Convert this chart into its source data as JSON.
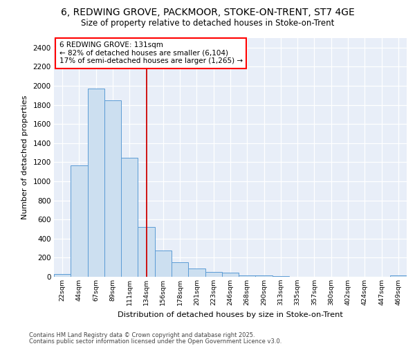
{
  "title_line1": "6, REDWING GROVE, PACKMOOR, STOKE-ON-TRENT, ST7 4GE",
  "title_line2": "Size of property relative to detached houses in Stoke-on-Trent",
  "xlabel": "Distribution of detached houses by size in Stoke-on-Trent",
  "ylabel": "Number of detached properties",
  "bin_labels": [
    "22sqm",
    "44sqm",
    "67sqm",
    "89sqm",
    "111sqm",
    "134sqm",
    "156sqm",
    "178sqm",
    "201sqm",
    "223sqm",
    "246sqm",
    "268sqm",
    "290sqm",
    "313sqm",
    "335sqm",
    "357sqm",
    "380sqm",
    "402sqm",
    "424sqm",
    "447sqm",
    "469sqm"
  ],
  "bar_values": [
    28,
    1170,
    1970,
    1850,
    1245,
    520,
    275,
    155,
    88,
    50,
    40,
    18,
    18,
    10,
    0,
    0,
    0,
    0,
    0,
    0,
    12
  ],
  "bar_color": "#ccdff0",
  "bar_edge_color": "#5b9bd5",
  "annotation_text": "6 REDWING GROVE: 131sqm\n← 82% of detached houses are smaller (6,104)\n17% of semi-detached houses are larger (1,265) →",
  "vline_x_index": 5,
  "vline_color": "#cc0000",
  "plot_bg_color": "#e8eef8",
  "grid_color": "#ffffff",
  "fig_bg_color": "#ffffff",
  "ylim": [
    0,
    2500
  ],
  "yticks": [
    0,
    200,
    400,
    600,
    800,
    1000,
    1200,
    1400,
    1600,
    1800,
    2000,
    2200,
    2400
  ],
  "footer_line1": "Contains HM Land Registry data © Crown copyright and database right 2025.",
  "footer_line2": "Contains public sector information licensed under the Open Government Licence v3.0."
}
